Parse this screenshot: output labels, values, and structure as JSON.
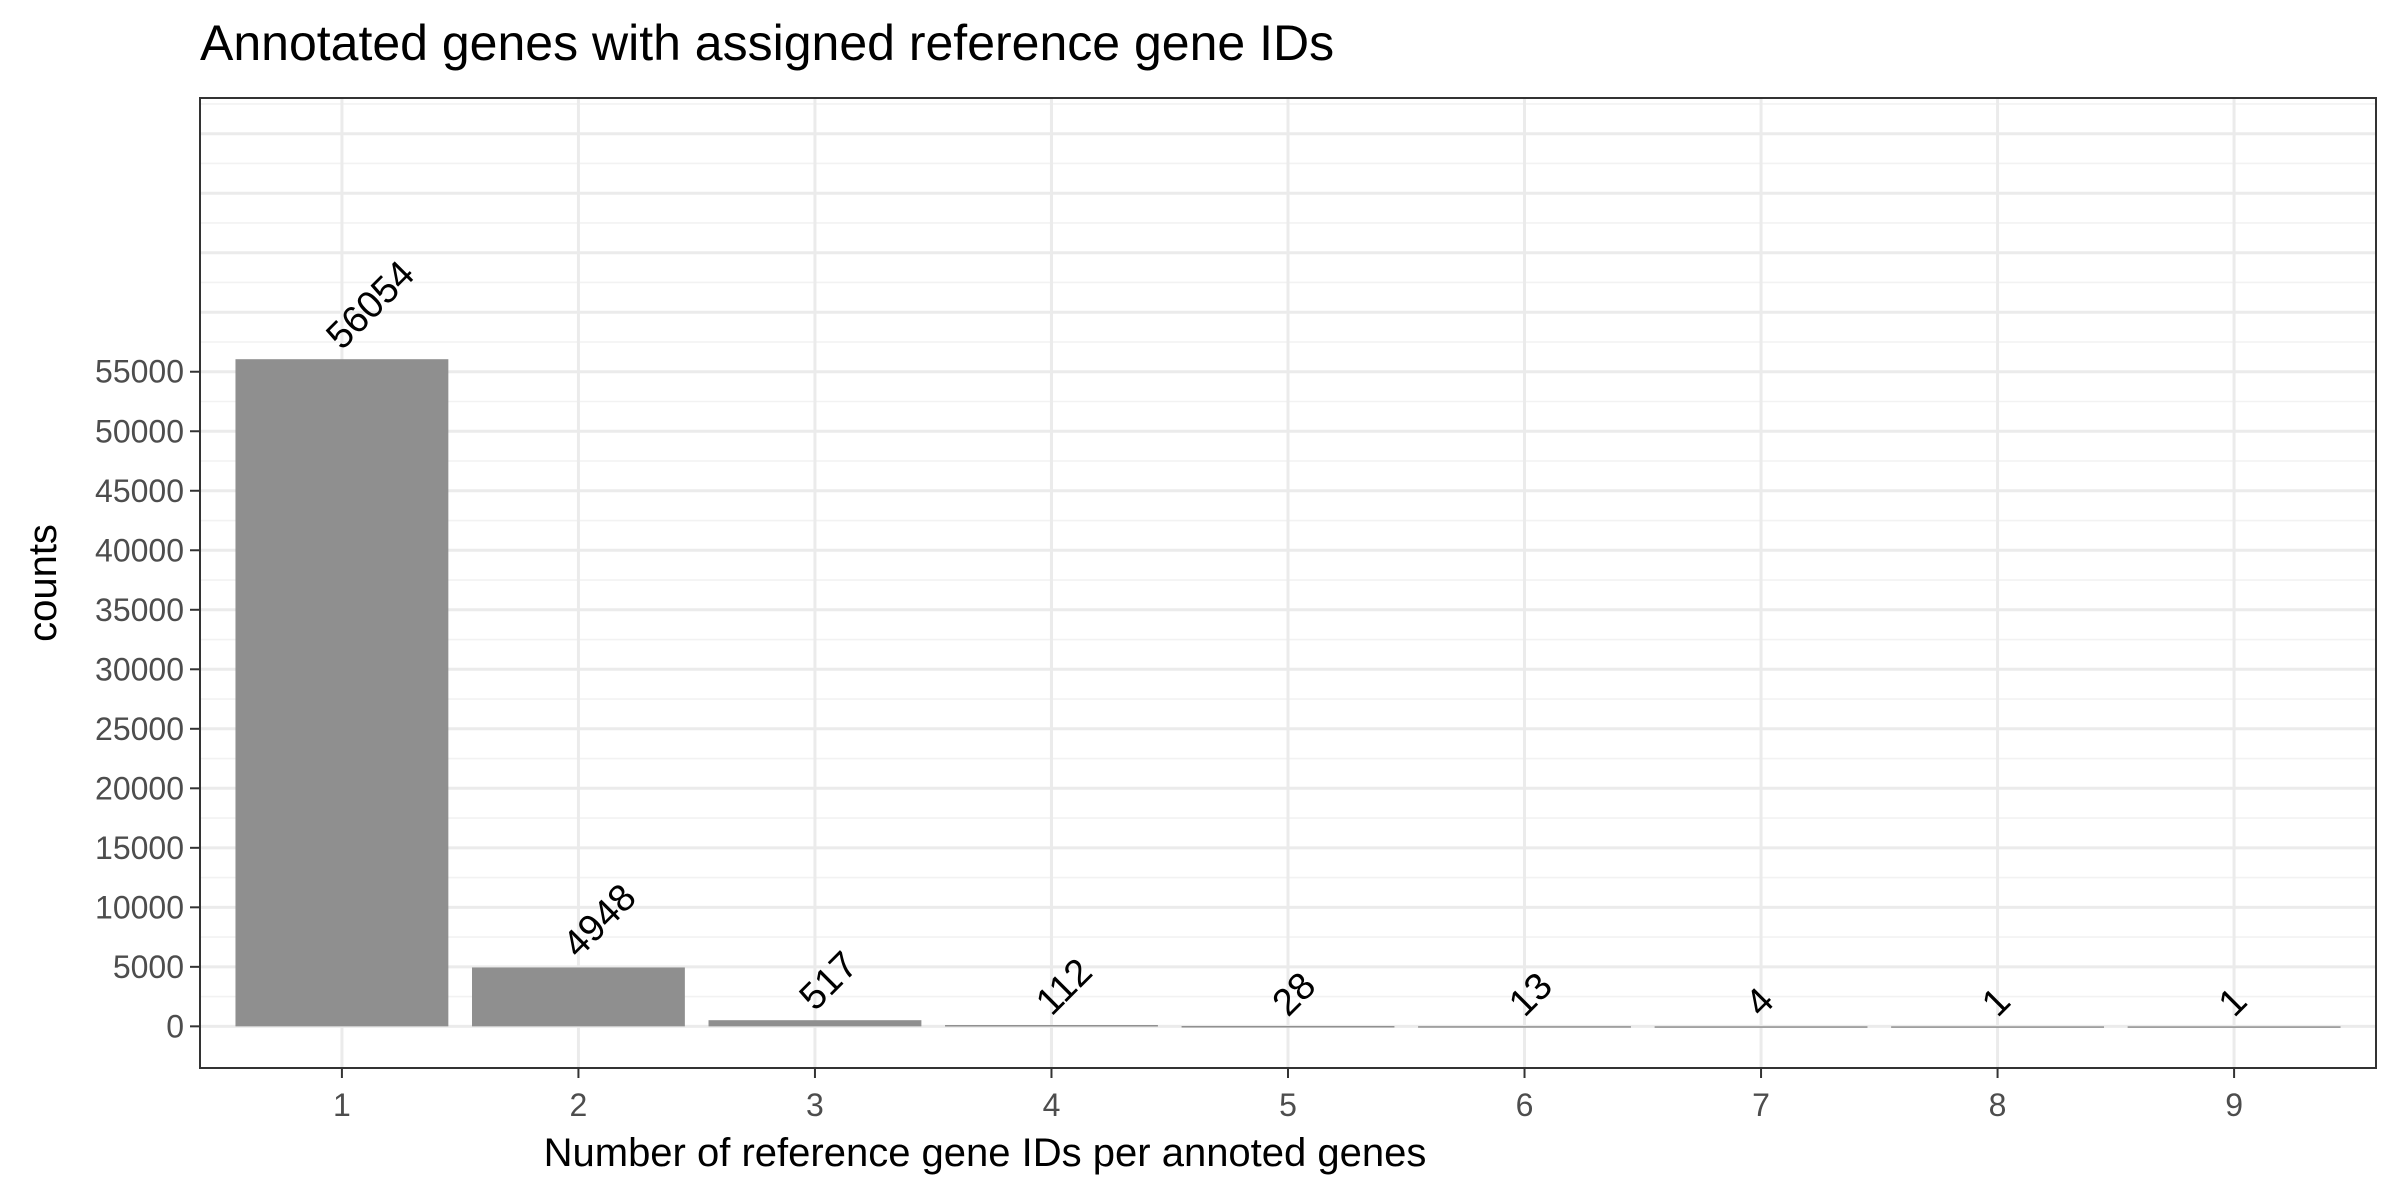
{
  "chart_data": {
    "type": "bar",
    "title": "Annotated genes with assigned reference gene IDs",
    "xlabel": "Number of reference gene IDs per annoted genes",
    "ylabel": "counts",
    "categories": [
      "1",
      "2",
      "3",
      "4",
      "5",
      "6",
      "7",
      "8",
      "9"
    ],
    "values": [
      56054,
      4948,
      517,
      112,
      28,
      13,
      4,
      1,
      1
    ],
    "data_labels": [
      "56054",
      "4948",
      "517",
      "112",
      "28",
      "13",
      "4",
      "1",
      "1"
    ],
    "yticks": [
      0,
      5000,
      10000,
      15000,
      20000,
      25000,
      30000,
      35000,
      40000,
      45000,
      50000,
      55000
    ],
    "ytick_labels": [
      "0",
      "5000",
      "10000",
      "15000",
      "20000",
      "25000",
      "30000",
      "35000",
      "40000",
      "45000",
      "50000",
      "55000"
    ],
    "ylim": [
      -3500,
      78000
    ],
    "grid": true,
    "legend": "none",
    "colors": {
      "bar": "#8f8f8f",
      "grid": "#ebebeb",
      "panel_border": "#333333",
      "tick_text": "#4d4d4d",
      "text": "#000000",
      "background": "#ffffff"
    }
  }
}
